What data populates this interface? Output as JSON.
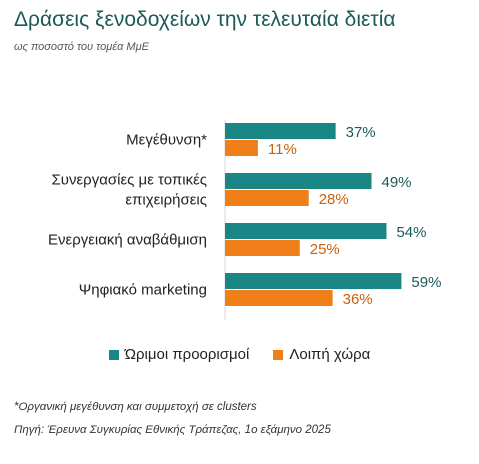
{
  "header": {
    "title": "Δράσεις ξενοδοχείων την τελευταία διετία",
    "subtitle": "ως ποσοστό του τομέα ΜμΕ"
  },
  "chart_data": {
    "type": "bar",
    "orientation": "horizontal",
    "categories": [
      [
        "Μεγέθυνση*"
      ],
      [
        "Συνεργασίες με τοπικές",
        "επιχειρήσεις"
      ],
      [
        "Ενεργειακή αναβάθμιση"
      ],
      [
        "Ψηφιακό marketing"
      ]
    ],
    "series": [
      {
        "name": "Ώριμοι προορισμοί",
        "values": [
          37,
          49,
          54,
          59
        ],
        "labels": [
          "37%",
          "49%",
          "54%",
          "59%"
        ],
        "color": "#1a8585",
        "label_color": "#1c5a5a"
      },
      {
        "name": "Λοιπή χώρα",
        "values": [
          11,
          28,
          25,
          36
        ],
        "labels": [
          "11%",
          "28%",
          "25%",
          "36%"
        ],
        "color": "#f07f1a",
        "label_color": "#c8600c"
      }
    ],
    "xlim": [
      0,
      80
    ],
    "grid": false,
    "legend_position": "bottom"
  },
  "footer": {
    "note": "*Οργανική μεγέθυνση και συμμετοχή σε clusters",
    "source": "Πηγή: Έρευνα Συγκυρίας Εθνικής Τράπεζας, 1ο εξάμηνο 2025"
  }
}
